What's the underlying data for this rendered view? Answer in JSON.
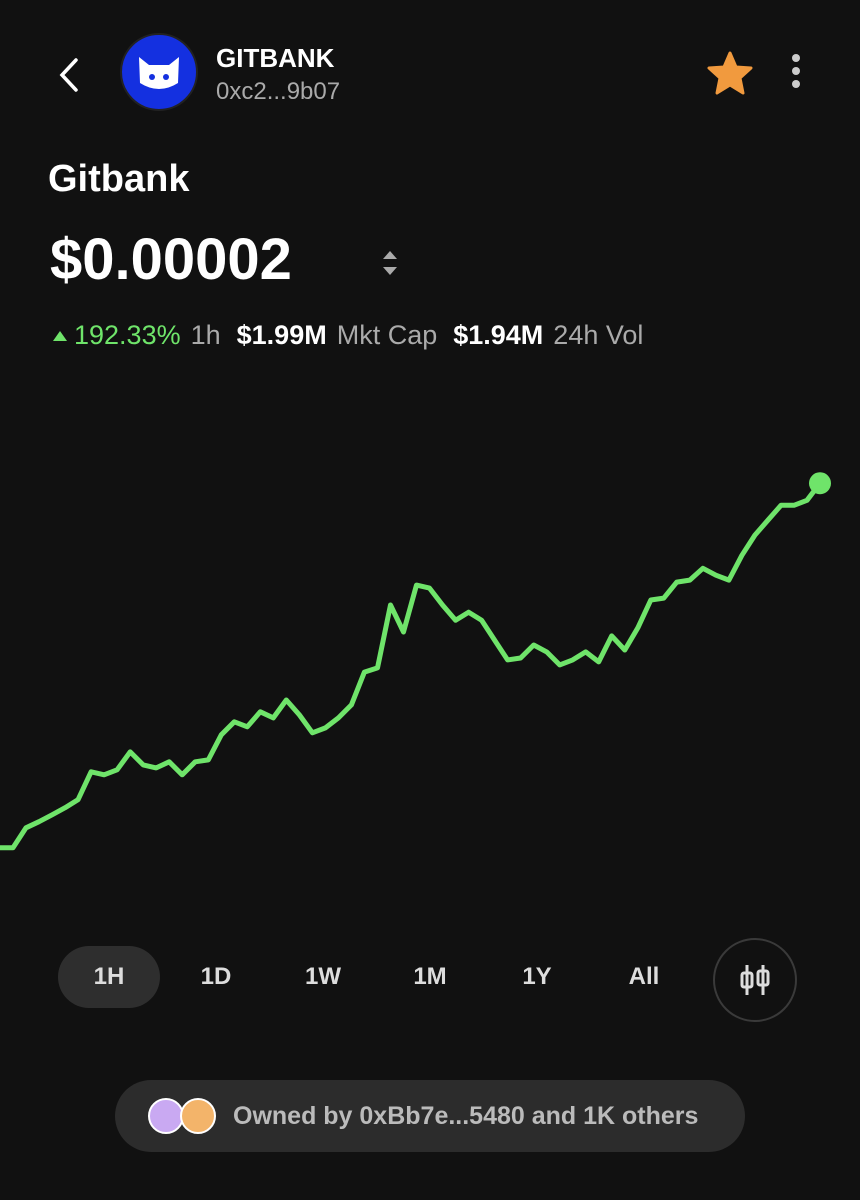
{
  "header": {
    "symbol": "GITBANK",
    "address": "0xc2...9b07"
  },
  "token": {
    "name": "Gitbank",
    "price": "$0.00002",
    "change": "192.33%",
    "change_period": "1h",
    "market_cap": "$1.99M",
    "market_cap_label": "Mkt Cap",
    "volume": "$1.94M",
    "volume_label": "24h Vol"
  },
  "chart_data": {
    "type": "line",
    "color": "#6fe46a",
    "ylim": [
      4e-06,
      2.2e-05
    ],
    "values": [
      6.8e-06,
      6.8e-06,
      7.52e-06,
      7.74e-06,
      7.99e-06,
      8.25e-06,
      8.54e-06,
      9.55e-06,
      9.44e-06,
      9.62e-06,
      1.027e-05,
      9.8e-06,
      9.69e-06,
      9.91e-06,
      9.44e-06,
      9.91e-06,
      9.98e-06,
      1.089e-05,
      1.136e-05,
      1.118e-05,
      1.172e-05,
      1.15e-05,
      1.215e-05,
      1.161e-05,
      1.096e-05,
      1.114e-05,
      1.15e-05,
      1.197e-05,
      1.316e-05,
      1.331e-05,
      1.559e-05,
      1.461e-05,
      1.631e-05,
      1.62e-05,
      1.559e-05,
      1.504e-05,
      1.533e-05,
      1.504e-05,
      1.432e-05,
      1.36e-05,
      1.367e-05,
      1.414e-05,
      1.389e-05,
      1.342e-05,
      1.36e-05,
      1.389e-05,
      1.353e-05,
      1.447e-05,
      1.396e-05,
      1.476e-05,
      1.577e-05,
      1.584e-05,
      1.642e-05,
      1.649e-05,
      1.692e-05,
      1.667e-05,
      1.649e-05,
      1.739e-05,
      1.812e-05,
      1.866e-05,
      1.92e-05,
      1.92e-05,
      1.938e-05,
      2e-05
    ]
  },
  "tabs": [
    "1H",
    "1D",
    "1W",
    "1M",
    "1Y",
    "All"
  ],
  "owners": "Owned by 0xBb7e...5480 and 1K others"
}
